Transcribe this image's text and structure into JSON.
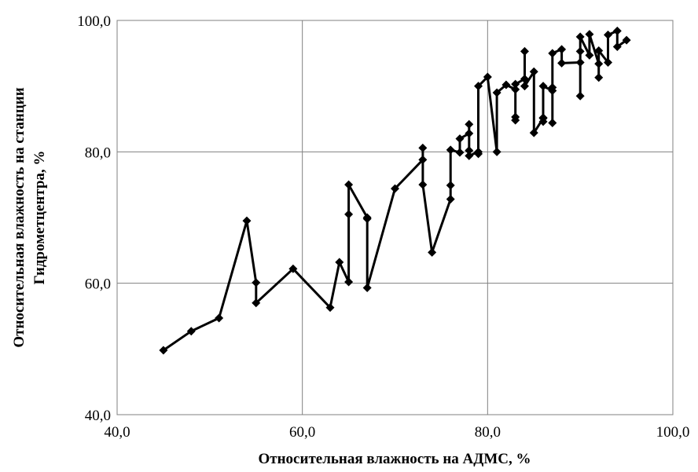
{
  "chart_data": {
    "type": "line",
    "title": "",
    "xlabel": "Относительная  влажность на АДМС, %",
    "ylabel_lines": [
      "Относительная  влажность  на станции",
      "Гидрометцентра,  %"
    ],
    "xlim": [
      40,
      100
    ],
    "ylim": [
      40,
      100
    ],
    "x_ticks": [
      40,
      60,
      80,
      100
    ],
    "y_ticks": [
      40,
      60,
      80,
      100
    ],
    "x_tick_labels": [
      "40,0",
      "60,0",
      "80,0",
      "100,0"
    ],
    "y_tick_labels": [
      "40,0",
      "60,0",
      "80,0",
      "100,0"
    ],
    "grid": true,
    "legend": "none",
    "line_color": "#000000",
    "series": [
      {
        "points": [
          [
            45,
            49.8
          ],
          [
            48,
            52.7
          ],
          [
            51,
            54.7
          ],
          [
            54,
            69.5
          ],
          [
            55,
            60.1
          ],
          [
            55,
            57.0
          ],
          [
            59,
            62.2
          ],
          [
            63,
            56.3
          ],
          [
            64,
            63.2
          ],
          [
            65,
            60.2
          ],
          [
            65,
            70.5
          ],
          [
            65,
            75.0
          ],
          [
            67,
            70.0
          ],
          [
            67,
            69.8
          ],
          [
            67,
            59.3
          ],
          [
            70,
            74.4
          ],
          [
            73,
            78.8
          ],
          [
            73,
            80.6
          ],
          [
            73,
            75.0
          ],
          [
            74,
            64.7
          ],
          [
            76,
            72.8
          ],
          [
            76,
            74.9
          ],
          [
            76,
            80.3
          ],
          [
            77,
            79.9
          ],
          [
            77,
            82.0
          ],
          [
            78,
            82.8
          ],
          [
            78,
            84.2
          ],
          [
            78,
            80.2
          ],
          [
            78,
            79.4
          ],
          [
            79,
            80.0
          ],
          [
            79,
            79.7
          ],
          [
            79,
            90.0
          ],
          [
            80,
            91.4
          ],
          [
            81,
            80.0
          ],
          [
            81,
            89.0
          ],
          [
            82,
            90.2
          ],
          [
            83,
            89.5
          ],
          [
            83,
            85.3
          ],
          [
            83,
            84.8
          ],
          [
            83,
            90.3
          ],
          [
            84,
            91.1
          ],
          [
            84,
            95.3
          ],
          [
            84,
            90.0
          ],
          [
            85,
            92.2
          ],
          [
            85,
            82.9
          ],
          [
            86,
            85.1
          ],
          [
            86,
            84.6
          ],
          [
            86,
            85.2
          ],
          [
            86,
            90.0
          ],
          [
            87,
            89.3
          ],
          [
            87,
            89.8
          ],
          [
            87,
            84.4
          ],
          [
            87,
            95.0
          ],
          [
            88,
            95.6
          ],
          [
            88,
            93.5
          ],
          [
            90,
            93.6
          ],
          [
            90,
            88.5
          ],
          [
            90,
            95.3
          ],
          [
            90,
            97.5
          ],
          [
            91,
            94.7
          ],
          [
            91,
            97.9
          ],
          [
            92,
            93.4
          ],
          [
            92,
            91.3
          ],
          [
            92,
            95.4
          ],
          [
            93,
            93.6
          ],
          [
            93,
            97.8
          ],
          [
            94,
            98.4
          ],
          [
            94,
            96.0
          ],
          [
            95,
            97.0
          ]
        ]
      }
    ]
  }
}
